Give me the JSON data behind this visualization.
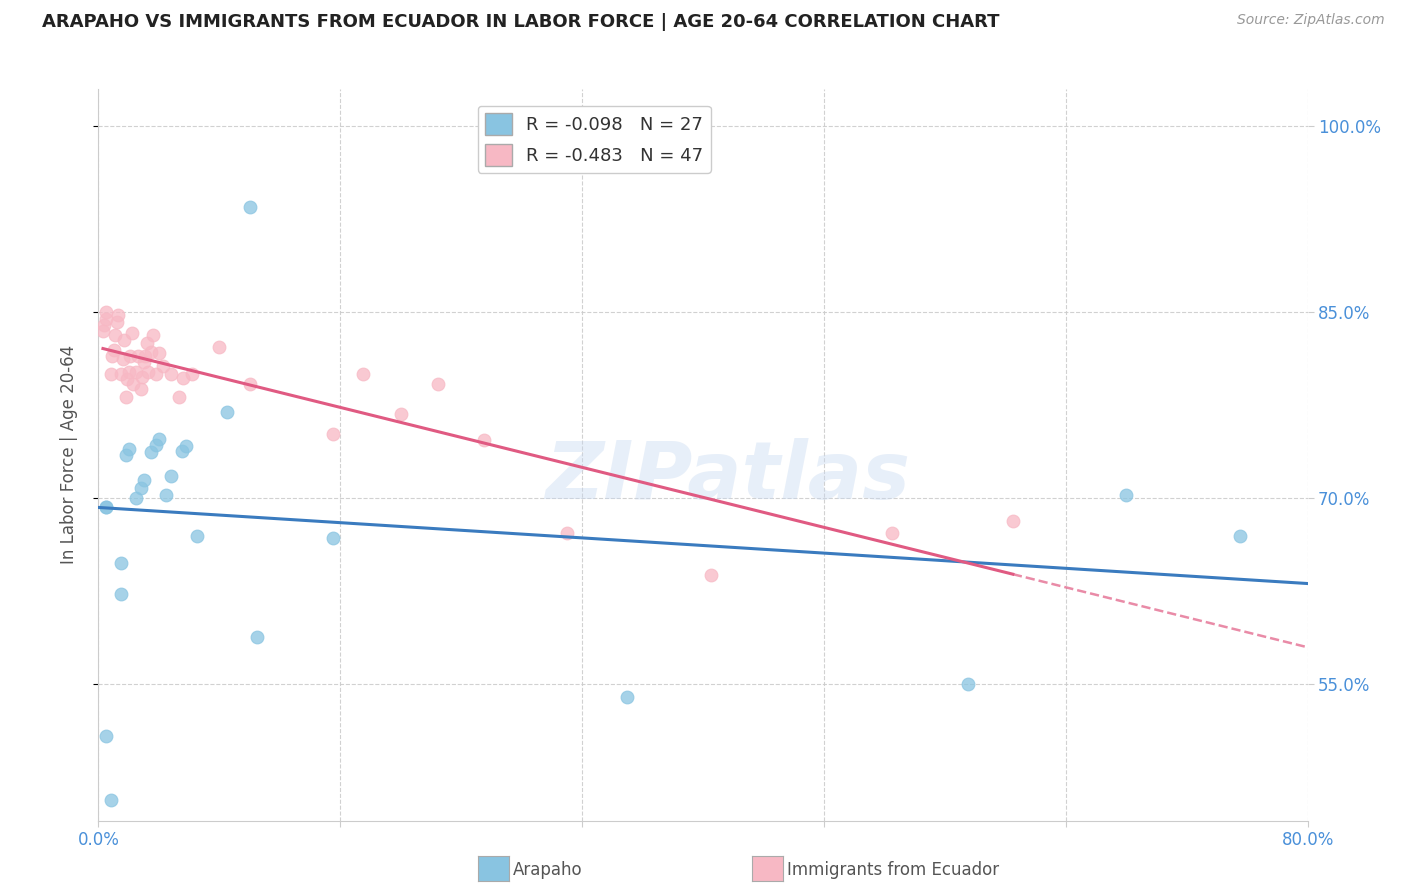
{
  "title": "ARAPAHO VS IMMIGRANTS FROM ECUADOR IN LABOR FORCE | AGE 20-64 CORRELATION CHART",
  "source": "Source: ZipAtlas.com",
  "ylabel": "In Labor Force | Age 20-64",
  "xlim": [
    0.0,
    0.8
  ],
  "ylim": [
    0.44,
    1.03
  ],
  "yticks": [
    0.55,
    0.7,
    0.85,
    1.0
  ],
  "ytick_labels": [
    "55.0%",
    "70.0%",
    "85.0%",
    "100.0%"
  ],
  "xticks": [
    0.0,
    0.16,
    0.32,
    0.48,
    0.64,
    0.8
  ],
  "xtick_labels": [
    "0.0%",
    "",
    "",
    "",
    "",
    "80.0%"
  ],
  "watermark": "ZIPatlas",
  "legend_blue_r": "R = -0.098",
  "legend_blue_n": "N = 27",
  "legend_pink_r": "R = -0.483",
  "legend_pink_n": "N = 47",
  "arapaho_x": [
    0.005,
    0.005,
    0.005,
    0.008,
    0.015,
    0.015,
    0.018,
    0.02,
    0.025,
    0.028,
    0.03,
    0.035,
    0.038,
    0.04,
    0.045,
    0.048,
    0.055,
    0.058,
    0.065,
    0.085,
    0.1,
    0.105,
    0.155,
    0.35,
    0.575,
    0.68,
    0.755
  ],
  "arapaho_y": [
    0.693,
    0.693,
    0.508,
    0.457,
    0.623,
    0.648,
    0.735,
    0.74,
    0.7,
    0.708,
    0.715,
    0.737,
    0.743,
    0.748,
    0.703,
    0.718,
    0.738,
    0.742,
    0.67,
    0.77,
    0.935,
    0.588,
    0.668,
    0.54,
    0.55,
    0.703,
    0.67
  ],
  "ecuador_x": [
    0.003,
    0.004,
    0.005,
    0.005,
    0.008,
    0.009,
    0.01,
    0.011,
    0.012,
    0.013,
    0.015,
    0.016,
    0.017,
    0.018,
    0.019,
    0.02,
    0.021,
    0.022,
    0.023,
    0.025,
    0.026,
    0.028,
    0.029,
    0.03,
    0.031,
    0.032,
    0.033,
    0.035,
    0.036,
    0.038,
    0.04,
    0.043,
    0.048,
    0.053,
    0.056,
    0.062,
    0.08,
    0.1,
    0.155,
    0.175,
    0.2,
    0.225,
    0.255,
    0.31,
    0.405,
    0.525,
    0.605
  ],
  "ecuador_y": [
    0.835,
    0.84,
    0.845,
    0.85,
    0.8,
    0.815,
    0.82,
    0.832,
    0.842,
    0.848,
    0.8,
    0.812,
    0.828,
    0.782,
    0.796,
    0.802,
    0.815,
    0.833,
    0.792,
    0.802,
    0.815,
    0.788,
    0.798,
    0.81,
    0.815,
    0.825,
    0.802,
    0.818,
    0.832,
    0.8,
    0.817,
    0.807,
    0.8,
    0.782,
    0.797,
    0.8,
    0.822,
    0.792,
    0.752,
    0.8,
    0.768,
    0.792,
    0.747,
    0.672,
    0.638,
    0.672,
    0.682
  ],
  "blue_scatter_color": "#89c4e1",
  "pink_scatter_color": "#f7b8c4",
  "blue_line_color": "#3a7bbf",
  "pink_line_color": "#e05a82",
  "background_color": "#ffffff",
  "grid_color": "#cccccc",
  "title_color": "#222222",
  "ylabel_color": "#555555",
  "axis_tick_color": "#4a90d9",
  "source_color": "#999999",
  "legend_text_color": "#333333",
  "bottom_legend_text_color": "#555555"
}
